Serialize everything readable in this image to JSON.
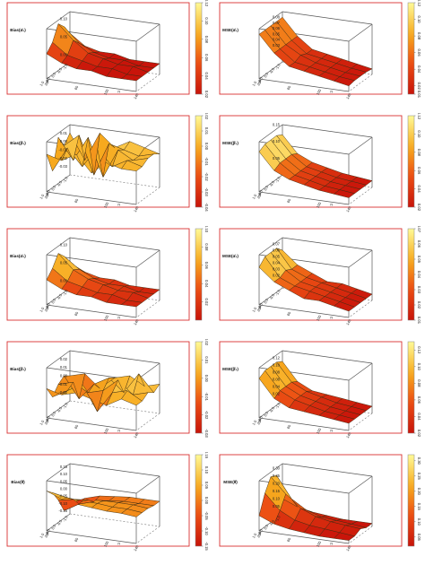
{
  "chart_data": [
    {
      "type": "surface3d",
      "zlabel": "Bias(α̂₁)",
      "xlabel": "θ",
      "ylabel": "n",
      "x_ticks": [
        "-1.0",
        "-0.5",
        "0.0",
        "0.5",
        "1.0"
      ],
      "y_ticks": [
        "20",
        "60",
        "100",
        "140"
      ],
      "z_ticks": [
        "0.10",
        "0.05",
        "0.00"
      ],
      "colorbar": {
        "ticks": [
          "0.12",
          "0.10",
          "0.08",
          "0.06",
          "0.04",
          "0.02"
        ],
        "range": [
          0.02,
          0.12
        ]
      },
      "zlim": [
        -0.02,
        0.12
      ],
      "n_values": [
        20,
        40,
        60,
        80,
        100,
        120,
        140
      ],
      "theta_values": [
        -1.0,
        -0.5,
        0.0,
        0.5,
        1.0
      ],
      "z": [
        [
          0.06,
          0.03,
          0.02,
          0.02,
          0.01,
          0.01,
          0.01
        ],
        [
          0.09,
          0.05,
          0.03,
          0.02,
          0.02,
          0.01,
          0.01
        ],
        [
          0.11,
          0.07,
          0.04,
          0.03,
          0.02,
          0.02,
          0.01
        ],
        [
          0.07,
          0.04,
          0.03,
          0.02,
          0.02,
          0.01,
          0.01
        ],
        [
          0.05,
          0.03,
          0.02,
          0.02,
          0.01,
          0.01,
          0.01
        ]
      ]
    },
    {
      "type": "surface3d",
      "zlabel": "MSE(α̂₁)",
      "xlabel": "θ",
      "ylabel": "n",
      "x_ticks": [
        "-1.0",
        "-0.5",
        "0.0",
        "0.5",
        "1.0"
      ],
      "y_ticks": [
        "20",
        "60",
        "100",
        "140"
      ],
      "z_ticks": [
        "0.08",
        "0.07",
        "0.06",
        "0.05",
        "0.04",
        "0.03"
      ],
      "colorbar": {
        "ticks": [
          "0.12",
          "0.10",
          "0.08",
          "0.06",
          "0.04",
          "0.02",
          "0.01"
        ],
        "range": [
          0.01,
          0.12
        ]
      },
      "zlim": [
        0.0,
        0.09
      ],
      "n_values": [
        20,
        40,
        60,
        80,
        100,
        120,
        140
      ],
      "theta_values": [
        -1.0,
        -0.5,
        0.0,
        0.5,
        1.0
      ],
      "z": [
        [
          0.08,
          0.05,
          0.03,
          0.025,
          0.02,
          0.015,
          0.01
        ],
        [
          0.08,
          0.05,
          0.03,
          0.025,
          0.02,
          0.015,
          0.012
        ],
        [
          0.08,
          0.05,
          0.035,
          0.025,
          0.02,
          0.015,
          0.012
        ],
        [
          0.08,
          0.05,
          0.03,
          0.025,
          0.02,
          0.015,
          0.012
        ],
        [
          0.08,
          0.05,
          0.03,
          0.025,
          0.02,
          0.015,
          0.01
        ]
      ]
    },
    {
      "type": "surface3d",
      "zlabel": "Bias(β̂₁)",
      "xlabel": "θ",
      "ylabel": "n",
      "x_ticks": [
        "-1.0",
        "-0.5",
        "0.0",
        "0.5",
        "1.0"
      ],
      "y_ticks": [
        "20",
        "60",
        "100",
        "140"
      ],
      "z_ticks": [
        "0.01",
        "0.00",
        "-0.01",
        "-0.02",
        "-0.03"
      ],
      "colorbar": {
        "ticks": [
          "0.02",
          "0.01",
          "0.00",
          "-0.01",
          "-0.02",
          "-0.03",
          "-0.04"
        ],
        "range": [
          -0.04,
          0.02
        ]
      },
      "zlim": [
        -0.04,
        0.02
      ],
      "n_values": [
        20,
        40,
        60,
        80,
        100,
        120,
        140
      ],
      "theta_values": [
        -1.0,
        -0.5,
        0.0,
        0.5,
        1.0
      ],
      "z": [
        [
          0.01,
          -0.02,
          0.015,
          0.0,
          0.01,
          0.005,
          0.0
        ],
        [
          0.0,
          0.015,
          -0.03,
          0.01,
          0.005,
          0.0,
          0.005
        ],
        [
          0.015,
          -0.01,
          0.02,
          -0.025,
          0.01,
          0.0,
          0.005
        ],
        [
          -0.02,
          0.01,
          -0.01,
          0.015,
          -0.005,
          0.005,
          0.0
        ],
        [
          0.005,
          0.0,
          0.01,
          -0.01,
          0.005,
          0.0,
          0.0
        ]
      ]
    },
    {
      "type": "surface3d",
      "zlabel": "MSE(β̂₁)",
      "xlabel": "θ",
      "ylabel": "n",
      "x_ticks": [
        "-1.0",
        "-0.5",
        "0.0",
        "0.5",
        "1.0"
      ],
      "y_ticks": [
        "20",
        "60",
        "100",
        "140"
      ],
      "z_ticks": [
        "0.15",
        "0.10",
        "0.05"
      ],
      "colorbar": {
        "ticks": [
          "0.12",
          "0.10",
          "0.08",
          "0.06",
          "0.04",
          "0.02"
        ],
        "range": [
          0.02,
          0.12
        ]
      },
      "zlim": [
        0.0,
        0.15
      ],
      "n_values": [
        20,
        40,
        60,
        80,
        100,
        120,
        140
      ],
      "theta_values": [
        -1.0,
        -0.5,
        0.0,
        0.5,
        1.0
      ],
      "z": [
        [
          0.12,
          0.07,
          0.05,
          0.04,
          0.03,
          0.025,
          0.02
        ],
        [
          0.13,
          0.08,
          0.05,
          0.04,
          0.03,
          0.025,
          0.02
        ],
        [
          0.13,
          0.08,
          0.05,
          0.04,
          0.03,
          0.025,
          0.02
        ],
        [
          0.13,
          0.08,
          0.05,
          0.04,
          0.03,
          0.025,
          0.02
        ],
        [
          0.12,
          0.07,
          0.05,
          0.04,
          0.03,
          0.025,
          0.02
        ]
      ]
    },
    {
      "type": "surface3d",
      "zlabel": "Bias(α̂₂)",
      "xlabel": "θ",
      "ylabel": "n",
      "x_ticks": [
        "-1.0",
        "-0.5",
        "0.0",
        "0.5",
        "1.0"
      ],
      "y_ticks": [
        "20",
        "60",
        "100",
        "140"
      ],
      "z_ticks": [
        "0.10",
        "0.05",
        "0.00"
      ],
      "colorbar": {
        "ticks": [
          "0.10",
          "0.08",
          "0.06",
          "0.04",
          "0.02"
        ],
        "range": [
          0.0,
          0.1
        ]
      },
      "zlim": [
        -0.02,
        0.12
      ],
      "n_values": [
        20,
        40,
        60,
        80,
        100,
        120,
        140
      ],
      "theta_values": [
        -1.0,
        -0.5,
        0.0,
        0.5,
        1.0
      ],
      "z": [
        [
          0.05,
          0.03,
          0.02,
          0.02,
          0.01,
          0.01,
          0.01
        ],
        [
          0.08,
          0.05,
          0.03,
          0.02,
          0.02,
          0.01,
          0.01
        ],
        [
          0.1,
          0.06,
          0.04,
          0.03,
          0.02,
          0.02,
          0.01
        ],
        [
          0.07,
          0.04,
          0.03,
          0.02,
          0.02,
          0.01,
          0.01
        ],
        [
          0.05,
          0.03,
          0.02,
          0.02,
          0.01,
          0.01,
          0.01
        ]
      ]
    },
    {
      "type": "surface3d",
      "zlabel": "MSE(α̂₂)",
      "xlabel": "θ",
      "ylabel": "n",
      "x_ticks": [
        "-1.0",
        "-0.5",
        "0.0",
        "0.5",
        "1.0"
      ],
      "y_ticks": [
        "20",
        "60",
        "100",
        "140"
      ],
      "z_ticks": [
        "0.07",
        "0.06",
        "0.05",
        "0.04",
        "0.03",
        "0.02"
      ],
      "colorbar": {
        "ticks": [
          "0.07",
          "0.06",
          "0.05",
          "0.04",
          "0.03",
          "0.02",
          "0.01"
        ],
        "range": [
          0.01,
          0.07
        ]
      },
      "zlim": [
        0.0,
        0.08
      ],
      "n_values": [
        20,
        40,
        60,
        80,
        100,
        120,
        140
      ],
      "theta_values": [
        -1.0,
        -0.5,
        0.0,
        0.5,
        1.0
      ],
      "z": [
        [
          0.06,
          0.04,
          0.03,
          0.02,
          0.02,
          0.015,
          0.01
        ],
        [
          0.07,
          0.04,
          0.03,
          0.025,
          0.02,
          0.015,
          0.01
        ],
        [
          0.07,
          0.045,
          0.03,
          0.025,
          0.02,
          0.015,
          0.01
        ],
        [
          0.07,
          0.04,
          0.03,
          0.025,
          0.02,
          0.015,
          0.01
        ],
        [
          0.06,
          0.04,
          0.03,
          0.02,
          0.02,
          0.015,
          0.01
        ]
      ]
    },
    {
      "type": "surface3d",
      "zlabel": "Bias(β̂₂)",
      "xlabel": "θ",
      "ylabel": "n",
      "x_ticks": [
        "-1.0",
        "-0.5",
        "0.0",
        "0.5",
        "1.0"
      ],
      "y_ticks": [
        "20",
        "60",
        "100",
        "140"
      ],
      "z_ticks": [
        "0.02",
        "0.01",
        "0.00",
        "-0.01",
        "-0.02"
      ],
      "colorbar": {
        "ticks": [
          "0.02",
          "0.01",
          "0.00",
          "-0.01",
          "-0.02",
          "-0.03"
        ],
        "range": [
          -0.03,
          0.02
        ]
      },
      "zlim": [
        -0.03,
        0.03
      ],
      "n_values": [
        20,
        40,
        60,
        80,
        100,
        120,
        140
      ],
      "theta_values": [
        -1.0,
        -0.5,
        0.0,
        0.5,
        1.0
      ],
      "z": [
        [
          0.0,
          0.005,
          -0.01,
          0.005,
          0.01,
          0.0,
          0.005
        ],
        [
          0.005,
          -0.02,
          0.0,
          0.01,
          -0.005,
          0.02,
          0.0
        ],
        [
          0.0,
          0.005,
          -0.005,
          0.0,
          0.015,
          0.0,
          0.005
        ],
        [
          -0.01,
          0.0,
          0.01,
          -0.02,
          0.005,
          0.01,
          0.0
        ],
        [
          0.005,
          0.0,
          0.005,
          0.0,
          -0.005,
          0.005,
          0.0
        ]
      ]
    },
    {
      "type": "surface3d",
      "zlabel": "MSE(β̂₂)",
      "xlabel": "θ",
      "ylabel": "n",
      "x_ticks": [
        "-1.0",
        "-0.5",
        "0.0",
        "0.5",
        "1.0"
      ],
      "y_ticks": [
        "20",
        "60",
        "100",
        "140"
      ],
      "z_ticks": [
        "0.12",
        "0.10",
        "0.08",
        "0.06",
        "0.04",
        "0.02"
      ],
      "colorbar": {
        "ticks": [
          "0.12",
          "0.10",
          "0.08",
          "0.06",
          "0.04",
          "0.02"
        ],
        "range": [
          0.02,
          0.13
        ]
      },
      "zlim": [
        0.0,
        0.14
      ],
      "n_values": [
        20,
        40,
        60,
        80,
        100,
        120,
        140
      ],
      "theta_values": [
        -1.0,
        -0.5,
        0.0,
        0.5,
        1.0
      ],
      "z": [
        [
          0.11,
          0.06,
          0.04,
          0.035,
          0.03,
          0.025,
          0.02
        ],
        [
          0.12,
          0.07,
          0.05,
          0.04,
          0.03,
          0.025,
          0.02
        ],
        [
          0.12,
          0.07,
          0.05,
          0.04,
          0.03,
          0.025,
          0.02
        ],
        [
          0.12,
          0.07,
          0.05,
          0.04,
          0.03,
          0.025,
          0.02
        ],
        [
          0.11,
          0.06,
          0.04,
          0.035,
          0.03,
          0.025,
          0.02
        ]
      ]
    },
    {
      "type": "surface3d",
      "zlabel": "Bias(θ̂)",
      "xlabel": "θ",
      "ylabel": "n",
      "x_ticks": [
        "-1.0",
        "-0.5",
        "0.0",
        "0.5",
        "1.0"
      ],
      "y_ticks": [
        "20",
        "60",
        "100",
        "140"
      ],
      "z_ticks": [
        "0.15",
        "0.10",
        "0.05",
        "0.00",
        "-0.05",
        "-0.10",
        "-0.15"
      ],
      "colorbar": {
        "ticks": [
          "0.15",
          "0.10",
          "0.05",
          "0.00",
          "-0.05",
          "-0.10",
          "-0.15"
        ],
        "range": [
          -0.15,
          0.15
        ]
      },
      "zlim": [
        -0.17,
        0.17
      ],
      "n_values": [
        20,
        40,
        60,
        80,
        100,
        120,
        140
      ],
      "theta_values": [
        -1.0,
        -0.5,
        0.0,
        0.5,
        1.0
      ],
      "z": [
        [
          -0.1,
          -0.05,
          -0.02,
          -0.01,
          0.0,
          0.0,
          0.0
        ],
        [
          -0.12,
          -0.06,
          -0.03,
          -0.01,
          0.0,
          0.0,
          0.0
        ],
        [
          -0.02,
          0.0,
          0.01,
          0.02,
          0.02,
          0.02,
          0.01
        ],
        [
          0.06,
          0.04,
          0.03,
          0.03,
          0.02,
          0.02,
          0.01
        ],
        [
          0.1,
          0.06,
          0.04,
          0.03,
          0.02,
          0.02,
          0.01
        ]
      ]
    },
    {
      "type": "surface3d",
      "zlabel": "MSE(θ̂)",
      "xlabel": "θ",
      "ylabel": "n",
      "x_ticks": [
        "-1.0",
        "-0.5",
        "0.0",
        "0.5",
        "1.0"
      ],
      "y_ticks": [
        "20",
        "60",
        "100",
        "140"
      ],
      "z_ticks": [
        "0.30",
        "0.25",
        "0.20",
        "0.15",
        "0.10",
        "0.05"
      ],
      "colorbar": {
        "ticks": [
          "0.30",
          "0.25",
          "0.20",
          "0.15",
          "0.10",
          "0.05"
        ],
        "range": [
          0.02,
          0.32
        ]
      },
      "zlim": [
        0.0,
        0.33
      ],
      "n_values": [
        20,
        40,
        60,
        80,
        100,
        120,
        140
      ],
      "theta_values": [
        -1.0,
        -0.5,
        0.0,
        0.5,
        1.0
      ],
      "z": [
        [
          0.1,
          0.06,
          0.04,
          0.03,
          0.02,
          0.02,
          0.02
        ],
        [
          0.28,
          0.14,
          0.08,
          0.05,
          0.04,
          0.03,
          0.02
        ],
        [
          0.3,
          0.2,
          0.12,
          0.08,
          0.06,
          0.05,
          0.04
        ],
        [
          0.22,
          0.12,
          0.07,
          0.05,
          0.04,
          0.03,
          0.02
        ],
        [
          0.1,
          0.06,
          0.04,
          0.03,
          0.02,
          0.02,
          0.02
        ]
      ]
    }
  ]
}
